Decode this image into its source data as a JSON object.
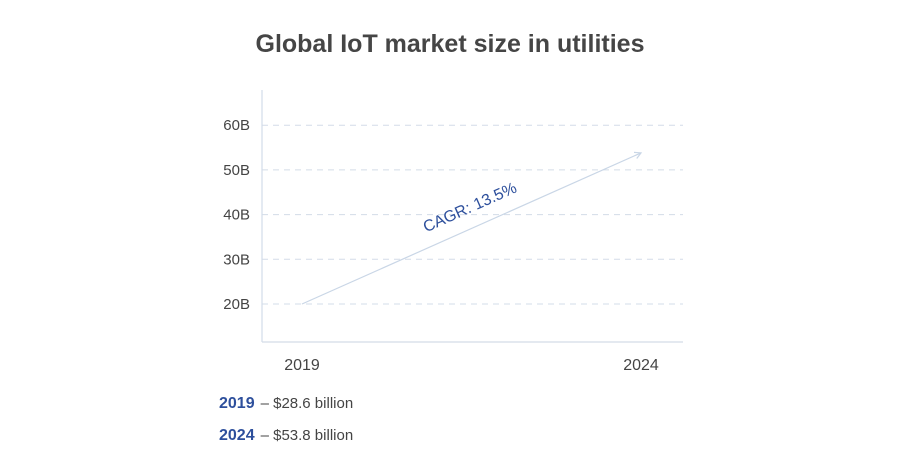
{
  "chart_data": {
    "type": "line",
    "title": "Global IoT market size in utilities",
    "categories": [
      "2019",
      "2024"
    ],
    "values": [
      28.6,
      53.8
    ],
    "unit": "B",
    "ylim": [
      10,
      65
    ],
    "yticks": [
      20,
      30,
      40,
      50,
      60
    ],
    "ytick_labels": [
      "20B",
      "30B",
      "40B",
      "50B",
      "60B"
    ],
    "grid": true,
    "annotation": "CAGR: 13.5%",
    "colors": {
      "arrow": "#c9d6e6",
      "grid": "#d3dce8",
      "accent": "#2d4f9c",
      "text": "#444444"
    }
  },
  "legend": [
    {
      "year": "2019",
      "text": "– $28.6 billion"
    },
    {
      "year": "2024",
      "text": "– $53.8 billion"
    }
  ]
}
